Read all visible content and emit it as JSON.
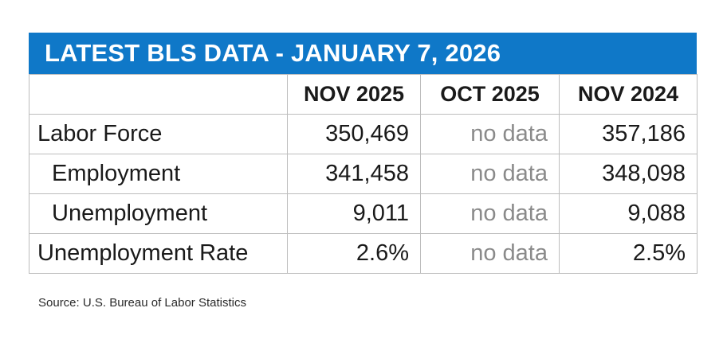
{
  "title": "LATEST BLS DATA - JANUARY 7, 2026",
  "table": {
    "columns": [
      "",
      "NOV 2025",
      "OCT 2025",
      "NOV 2024"
    ],
    "rows": [
      {
        "label": "Labor Force",
        "values": [
          "350,469",
          "no data",
          "357,186"
        ]
      },
      {
        "label": "Employment",
        "values": [
          "341,458",
          "no data",
          "348,098"
        ]
      },
      {
        "label": "Unemployment",
        "values": [
          "9,011",
          "no data",
          "9,088"
        ]
      },
      {
        "label": "Unemployment Rate",
        "values": [
          "2.6%",
          "no data",
          "2.5%"
        ]
      }
    ]
  },
  "source": "Source: U.S. Bureau of Labor Statistics",
  "colors": {
    "banner": "#0f78c8",
    "no_data_text": "#8a8a8a"
  }
}
